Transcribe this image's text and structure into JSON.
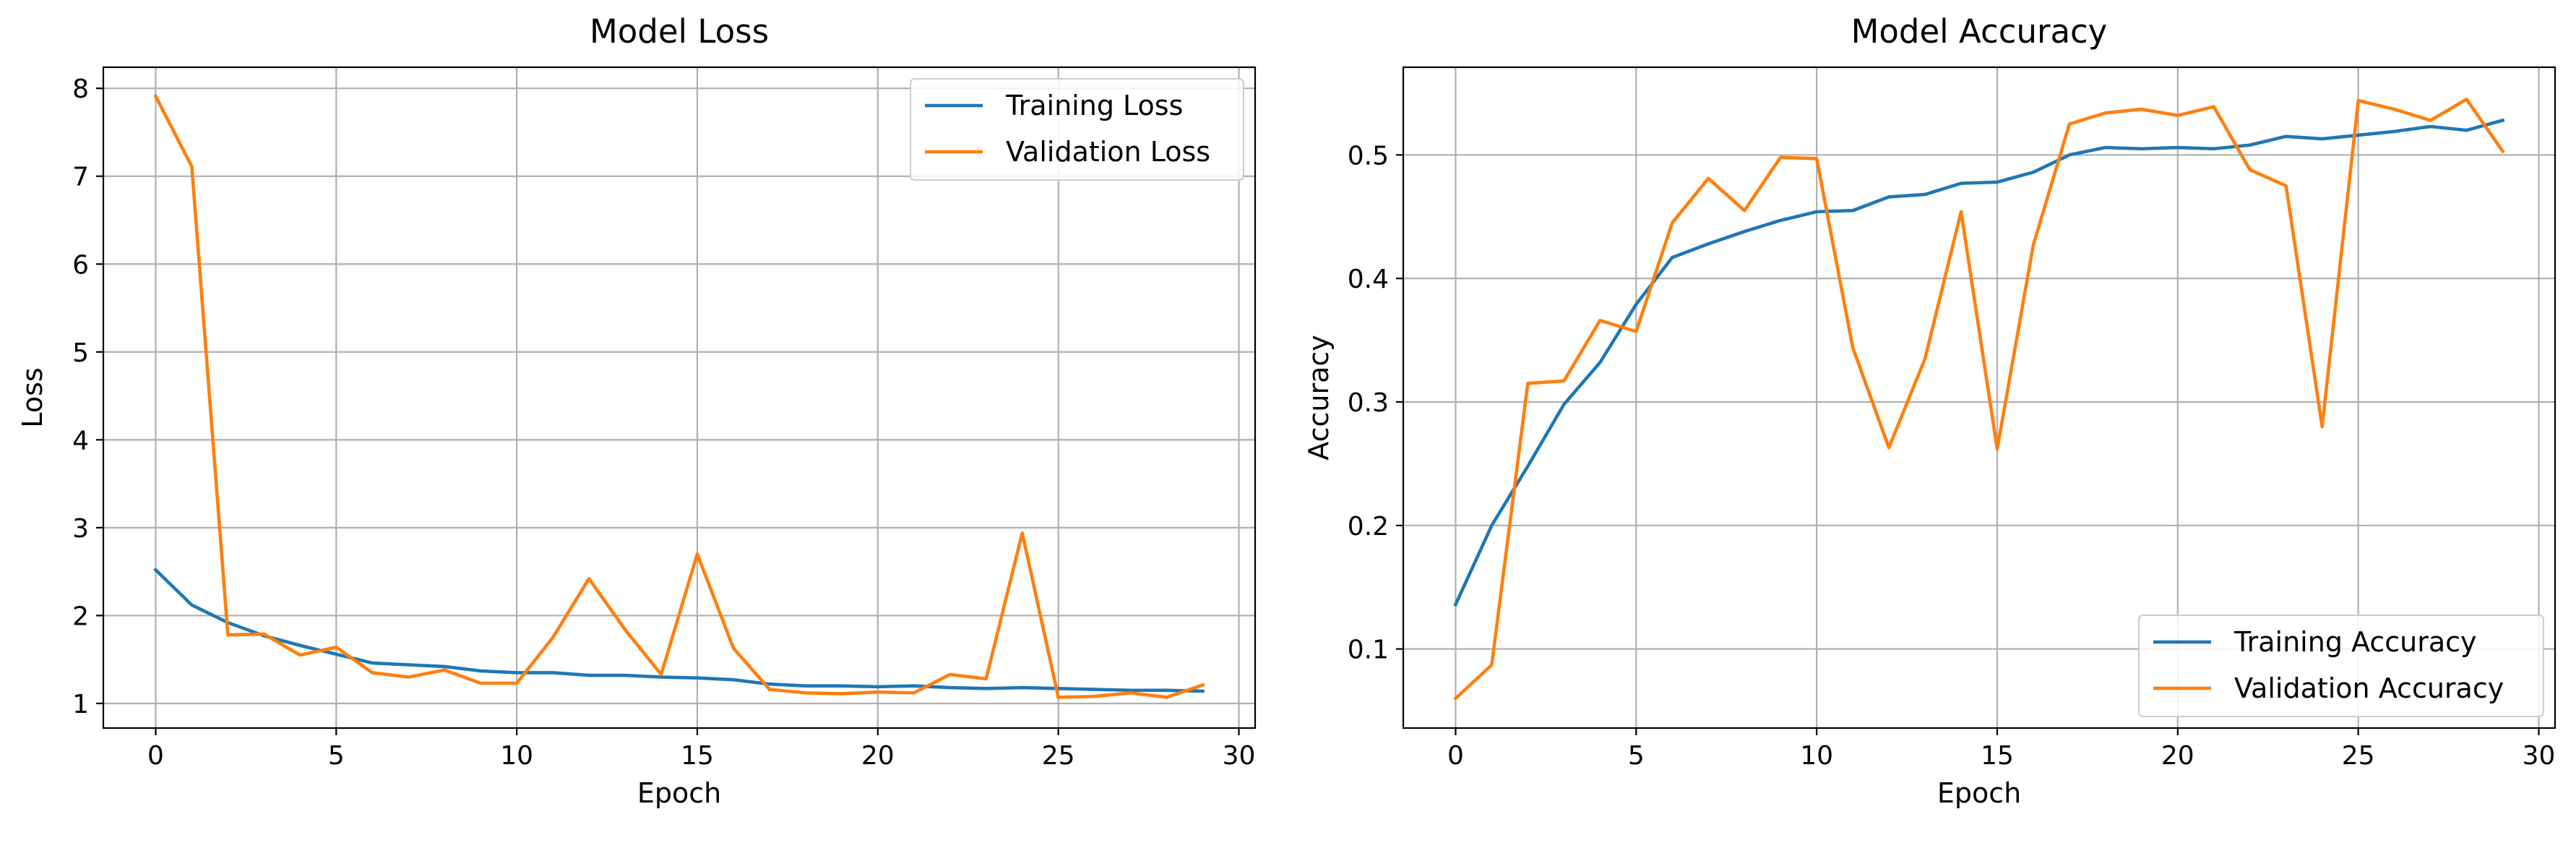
{
  "chart_data": [
    {
      "type": "line",
      "title": "Model Loss",
      "xlabel": "Epoch",
      "ylabel": "Loss",
      "xlim": [
        -1.45,
        30.45
      ],
      "ylim": [
        0.72,
        8.24
      ],
      "xticks": [
        0,
        5,
        10,
        15,
        20,
        25,
        30
      ],
      "yticks": [
        1,
        2,
        3,
        4,
        5,
        6,
        7,
        8
      ],
      "grid": true,
      "legend_position": "top-right",
      "x": [
        0,
        1,
        2,
        3,
        4,
        5,
        6,
        7,
        8,
        9,
        10,
        11,
        12,
        13,
        14,
        15,
        16,
        17,
        18,
        19,
        20,
        21,
        22,
        23,
        24,
        25,
        26,
        27,
        28,
        29
      ],
      "series": [
        {
          "name": "Training Loss",
          "color": "#1f77b4",
          "values": [
            2.52,
            2.12,
            1.92,
            1.77,
            1.66,
            1.56,
            1.46,
            1.44,
            1.42,
            1.37,
            1.35,
            1.35,
            1.32,
            1.32,
            1.3,
            1.29,
            1.27,
            1.22,
            1.2,
            1.2,
            1.19,
            1.2,
            1.18,
            1.17,
            1.18,
            1.17,
            1.16,
            1.15,
            1.15,
            1.14
          ]
        },
        {
          "name": "Validation Loss",
          "color": "#ff7f0e",
          "values": [
            7.91,
            7.11,
            1.78,
            1.79,
            1.55,
            1.64,
            1.35,
            1.3,
            1.38,
            1.23,
            1.23,
            1.75,
            2.42,
            1.84,
            1.33,
            2.7,
            1.63,
            1.16,
            1.12,
            1.11,
            1.13,
            1.12,
            1.33,
            1.28,
            2.94,
            1.07,
            1.08,
            1.12,
            1.07,
            1.21
          ]
        }
      ]
    },
    {
      "type": "line",
      "title": "Model Accuracy",
      "xlabel": "Epoch",
      "ylabel": "Accuracy",
      "xlim": [
        -1.45,
        30.45
      ],
      "ylim": [
        0.036,
        0.571
      ],
      "xticks": [
        0,
        5,
        10,
        15,
        20,
        25,
        30
      ],
      "yticks": [
        0.1,
        0.2,
        0.3,
        0.4,
        0.5
      ],
      "grid": true,
      "legend_position": "bottom-right",
      "x": [
        0,
        1,
        2,
        3,
        4,
        5,
        6,
        7,
        8,
        9,
        10,
        11,
        12,
        13,
        14,
        15,
        16,
        17,
        18,
        19,
        20,
        21,
        22,
        23,
        24,
        25,
        26,
        27,
        28,
        29
      ],
      "series": [
        {
          "name": "Training Accuracy",
          "color": "#1f77b4",
          "values": [
            0.136,
            0.2,
            0.248,
            0.298,
            0.332,
            0.379,
            0.417,
            0.428,
            0.438,
            0.447,
            0.454,
            0.455,
            0.466,
            0.468,
            0.477,
            0.478,
            0.486,
            0.5,
            0.506,
            0.505,
            0.506,
            0.505,
            0.508,
            0.515,
            0.513,
            0.516,
            0.519,
            0.523,
            0.52,
            0.528
          ]
        },
        {
          "name": "Validation Accuracy",
          "color": "#ff7f0e",
          "values": [
            0.06,
            0.087,
            0.315,
            0.317,
            0.366,
            0.357,
            0.445,
            0.481,
            0.455,
            0.498,
            0.497,
            0.344,
            0.263,
            0.335,
            0.454,
            0.262,
            0.427,
            0.525,
            0.534,
            0.537,
            0.532,
            0.539,
            0.488,
            0.475,
            0.28,
            0.544,
            0.537,
            0.528,
            0.545,
            0.503
          ]
        }
      ]
    }
  ]
}
